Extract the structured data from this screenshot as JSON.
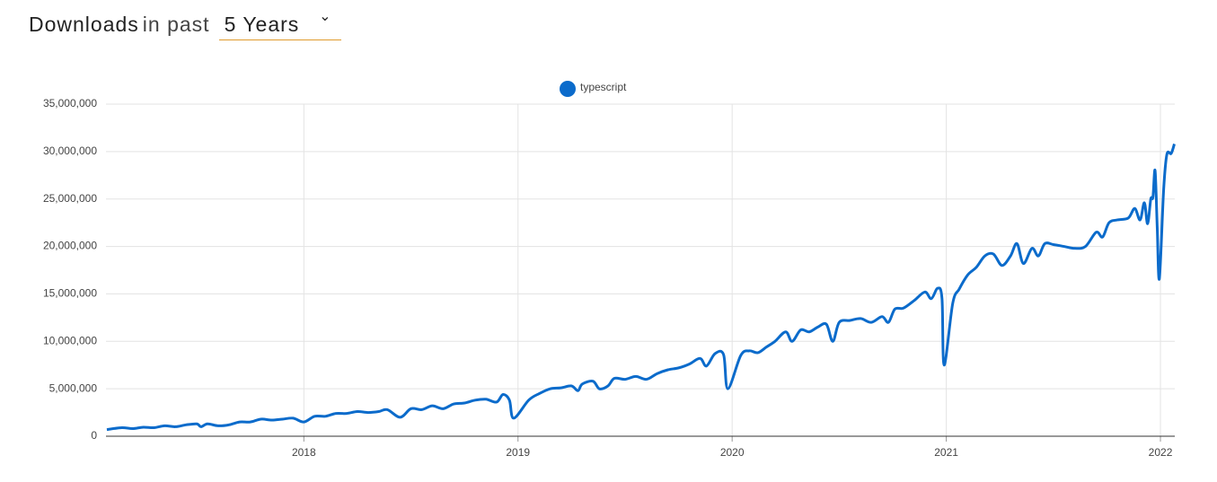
{
  "header": {
    "title": "Downloads",
    "subtitle": "in past",
    "period": "5 Years"
  },
  "chart_data": {
    "type": "line",
    "x": [
      2017.08,
      2017.15,
      2017.2,
      2017.25,
      2017.3,
      2017.35,
      2017.4,
      2017.45,
      2017.5,
      2017.52,
      2017.55,
      2017.6,
      2017.65,
      2017.7,
      2017.75,
      2017.8,
      2017.85,
      2017.9,
      2017.95,
      2018.0,
      2018.05,
      2018.1,
      2018.15,
      2018.2,
      2018.25,
      2018.3,
      2018.35,
      2018.39,
      2018.45,
      2018.5,
      2018.55,
      2018.6,
      2018.65,
      2018.7,
      2018.75,
      2018.8,
      2018.85,
      2018.9,
      2018.93,
      2018.96,
      2018.98,
      2019.05,
      2019.1,
      2019.15,
      2019.2,
      2019.25,
      2019.28,
      2019.3,
      2019.35,
      2019.38,
      2019.42,
      2019.45,
      2019.5,
      2019.55,
      2019.6,
      2019.65,
      2019.7,
      2019.75,
      2019.8,
      2019.85,
      2019.88,
      2019.92,
      2019.96,
      2019.98,
      2020.04,
      2020.08,
      2020.12,
      2020.16,
      2020.2,
      2020.25,
      2020.28,
      2020.32,
      2020.36,
      2020.4,
      2020.44,
      2020.47,
      2020.5,
      2020.55,
      2020.6,
      2020.65,
      2020.7,
      2020.73,
      2020.76,
      2020.8,
      2020.85,
      2020.9,
      2020.93,
      2020.96,
      2020.98,
      2020.99,
      2021.03,
      2021.06,
      2021.1,
      2021.14,
      2021.18,
      2021.22,
      2021.26,
      2021.3,
      2021.33,
      2021.36,
      2021.4,
      2021.43,
      2021.46,
      2021.5,
      2021.55,
      2021.6,
      2021.65,
      2021.7,
      2021.73,
      2021.76,
      2021.8,
      2021.85,
      2021.88,
      2021.905,
      2021.925,
      2021.94,
      2021.955,
      2021.965,
      2021.975,
      2021.985,
      2021.995,
      2022.015,
      2022.03,
      2022.05,
      2022.065
    ],
    "series": [
      {
        "name": "typescript",
        "color": "#0b6bcb",
        "values": [
          700000,
          900000,
          800000,
          950000,
          900000,
          1100000,
          1000000,
          1200000,
          1300000,
          1000000,
          1300000,
          1100000,
          1200000,
          1500000,
          1500000,
          1800000,
          1700000,
          1800000,
          1900000,
          1500000,
          2100000,
          2100000,
          2400000,
          2400000,
          2600000,
          2500000,
          2600000,
          2800000,
          2000000,
          2900000,
          2800000,
          3200000,
          2900000,
          3400000,
          3500000,
          3800000,
          3900000,
          3600000,
          4400000,
          3800000,
          1900000,
          3800000,
          4500000,
          5000000,
          5100000,
          5300000,
          4800000,
          5500000,
          5800000,
          5000000,
          5300000,
          6100000,
          6000000,
          6300000,
          6000000,
          6600000,
          7000000,
          7200000,
          7600000,
          8200000,
          7400000,
          8700000,
          8600000,
          5000000,
          8500000,
          9000000,
          8800000,
          9400000,
          10000000,
          11000000,
          10000000,
          11200000,
          11000000,
          11500000,
          11800000,
          10000000,
          12000000,
          12200000,
          12400000,
          12000000,
          12600000,
          12000000,
          13400000,
          13500000,
          14300000,
          15200000,
          14500000,
          15600000,
          14500000,
          7500000,
          14000000,
          15500000,
          17000000,
          17800000,
          19000000,
          19200000,
          18000000,
          19000000,
          20300000,
          18200000,
          19800000,
          19000000,
          20300000,
          20200000,
          20000000,
          19800000,
          20000000,
          21500000,
          21000000,
          22500000,
          22800000,
          23000000,
          24000000,
          22800000,
          24600000,
          22400000,
          25000000,
          25200000,
          28000000,
          22000000,
          16600000,
          26000000,
          29700000,
          29800000,
          30800000
        ]
      }
    ],
    "xlim": [
      2017.076,
      2022.067
    ],
    "xticks": [
      2018,
      2019,
      2020,
      2021,
      2022
    ],
    "ylim": [
      0,
      35000000
    ],
    "yticks": [
      0,
      {
        "value": 5000000,
        "label": "5,000,000"
      },
      {
        "value": 10000000,
        "label": "10,000,000"
      },
      {
        "value": 15000000,
        "label": "15,000,000"
      },
      {
        "value": 20000000,
        "label": "20,000,000"
      },
      {
        "value": 25000000,
        "label": "25,000,000"
      },
      {
        "value": 30000000,
        "label": "30,000,000"
      },
      {
        "value": 35000000,
        "label": "35,000,000"
      }
    ],
    "grid": true,
    "legend": "top"
  }
}
